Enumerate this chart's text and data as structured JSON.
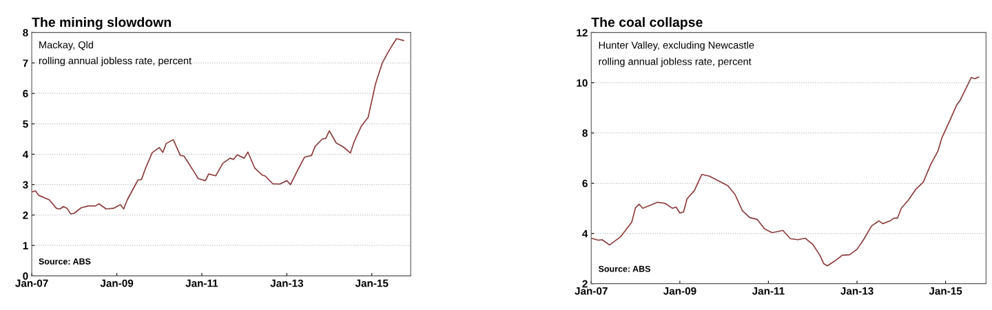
{
  "chart_data": [
    {
      "type": "line",
      "title": "The mining slowdown",
      "subtitle": "Mackay, Qld",
      "annotations": [
        "rolling annual jobless rate, percent",
        "Source: ABS"
      ],
      "x": [
        "2007-01",
        "2007-02",
        "2007-03",
        "2007-06",
        "2007-08",
        "2007-09",
        "2007-10",
        "2007-11",
        "2007-12",
        "2008-01",
        "2008-03",
        "2008-05",
        "2008-07",
        "2008-08",
        "2008-10",
        "2008-12",
        "2009-02",
        "2009-03",
        "2009-04",
        "2009-07",
        "2009-08",
        "2009-09",
        "2009-11",
        "2010-01",
        "2010-02",
        "2010-03",
        "2010-05",
        "2010-07",
        "2010-08",
        "2010-11",
        "2010-12",
        "2011-02",
        "2011-03",
        "2011-05",
        "2011-07",
        "2011-09",
        "2011-10",
        "2011-11",
        "2012-01",
        "2012-02",
        "2012-04",
        "2012-06",
        "2012-07",
        "2012-09",
        "2012-11",
        "2013-01",
        "2013-02",
        "2013-04",
        "2013-06",
        "2013-08",
        "2013-09",
        "2013-11",
        "2013-12",
        "2014-01",
        "2014-03",
        "2014-05",
        "2014-07",
        "2014-08",
        "2014-10",
        "2014-12",
        "2015-02",
        "2015-04",
        "2015-06",
        "2015-08",
        "2015-10"
      ],
      "series": [
        {
          "color": "#8b3a3a",
          "values": [
            2.76,
            2.8,
            2.65,
            2.5,
            2.22,
            2.2,
            2.28,
            2.22,
            2.04,
            2.06,
            2.24,
            2.3,
            2.3,
            2.37,
            2.2,
            2.22,
            2.34,
            2.2,
            2.5,
            3.15,
            3.17,
            3.5,
            4.05,
            4.22,
            4.06,
            4.35,
            4.48,
            3.96,
            3.94,
            3.39,
            3.2,
            3.13,
            3.35,
            3.29,
            3.7,
            3.87,
            3.83,
            3.98,
            3.87,
            4.07,
            3.54,
            3.32,
            3.28,
            3.03,
            3.02,
            3.13,
            3.0,
            3.45,
            3.9,
            3.96,
            4.26,
            4.5,
            4.52,
            4.77,
            4.37,
            4.24,
            4.04,
            4.4,
            4.91,
            5.22,
            6.3,
            7.0,
            7.43,
            7.8,
            7.74
          ]
        }
      ],
      "xlim": [
        "2007-01",
        "2015-12"
      ],
      "xticks": [
        {
          "value": "2007-01",
          "label": "Jan-07"
        },
        {
          "value": "2009-01",
          "label": "Jan-09"
        },
        {
          "value": "2011-01",
          "label": "Jan-11"
        },
        {
          "value": "2013-01",
          "label": "Jan-13"
        },
        {
          "value": "2015-01",
          "label": "Jan-15"
        }
      ],
      "ylim": [
        0,
        8
      ],
      "yticks": [
        0,
        1,
        2,
        3,
        4,
        5,
        6,
        7,
        8
      ],
      "grid": "y",
      "marker": "none",
      "line_style": "solid",
      "legend": false
    },
    {
      "type": "line",
      "title": "The coal collapse",
      "subtitle": "Hunter Valley, excluding Newcastle",
      "annotations": [
        "rolling annual jobless rate, percent",
        "Source: ABS"
      ],
      "x": [
        "2007-01",
        "2007-03",
        "2007-04",
        "2007-06",
        "2007-09",
        "2007-12",
        "2008-01",
        "2008-02",
        "2008-03",
        "2008-07",
        "2008-09",
        "2008-11",
        "2008-12",
        "2009-01",
        "2009-02",
        "2009-03",
        "2009-05",
        "2009-07",
        "2009-09",
        "2009-11",
        "2010-02",
        "2010-04",
        "2010-06",
        "2010-08",
        "2010-10",
        "2010-12",
        "2011-02",
        "2011-05",
        "2011-07",
        "2011-09",
        "2011-11",
        "2012-01",
        "2012-03",
        "2012-04",
        "2012-05",
        "2012-07",
        "2012-09",
        "2012-11",
        "2013-01",
        "2013-03",
        "2013-05",
        "2013-07",
        "2013-08",
        "2013-10",
        "2013-11",
        "2013-12",
        "2014-01",
        "2014-03",
        "2014-05",
        "2014-07",
        "2014-09",
        "2014-11",
        "2014-12",
        "2015-02",
        "2015-04",
        "2015-05",
        "2015-07",
        "2015-08",
        "2015-09",
        "2015-10"
      ],
      "series": [
        {
          "color": "#8b3a3a",
          "values": [
            3.81,
            3.73,
            3.75,
            3.54,
            3.87,
            4.45,
            5.02,
            5.16,
            5.0,
            5.24,
            5.2,
            5.0,
            5.05,
            4.81,
            4.86,
            5.38,
            5.71,
            6.35,
            6.28,
            6.13,
            5.9,
            5.55,
            4.9,
            4.63,
            4.56,
            4.18,
            4.03,
            4.12,
            3.79,
            3.75,
            3.81,
            3.57,
            3.13,
            2.8,
            2.71,
            2.9,
            3.13,
            3.15,
            3.37,
            3.79,
            4.3,
            4.5,
            4.39,
            4.5,
            4.61,
            4.61,
            5.0,
            5.33,
            5.76,
            6.04,
            6.75,
            7.3,
            7.8,
            8.45,
            9.1,
            9.3,
            9.9,
            10.21,
            10.16,
            10.23
          ]
        }
      ],
      "xlim": [
        "2007-01",
        "2015-12"
      ],
      "xticks": [
        {
          "value": "2007-01",
          "label": "Jan-07"
        },
        {
          "value": "2009-01",
          "label": "Jan-09"
        },
        {
          "value": "2011-01",
          "label": "Jan-11"
        },
        {
          "value": "2013-01",
          "label": "Jan-13"
        },
        {
          "value": "2015-01",
          "label": "Jan-15"
        }
      ],
      "ylim": [
        2,
        12
      ],
      "yticks": [
        2,
        4,
        6,
        8,
        10,
        12
      ],
      "grid": "y",
      "marker": "none",
      "line_style": "solid",
      "legend": false
    }
  ]
}
